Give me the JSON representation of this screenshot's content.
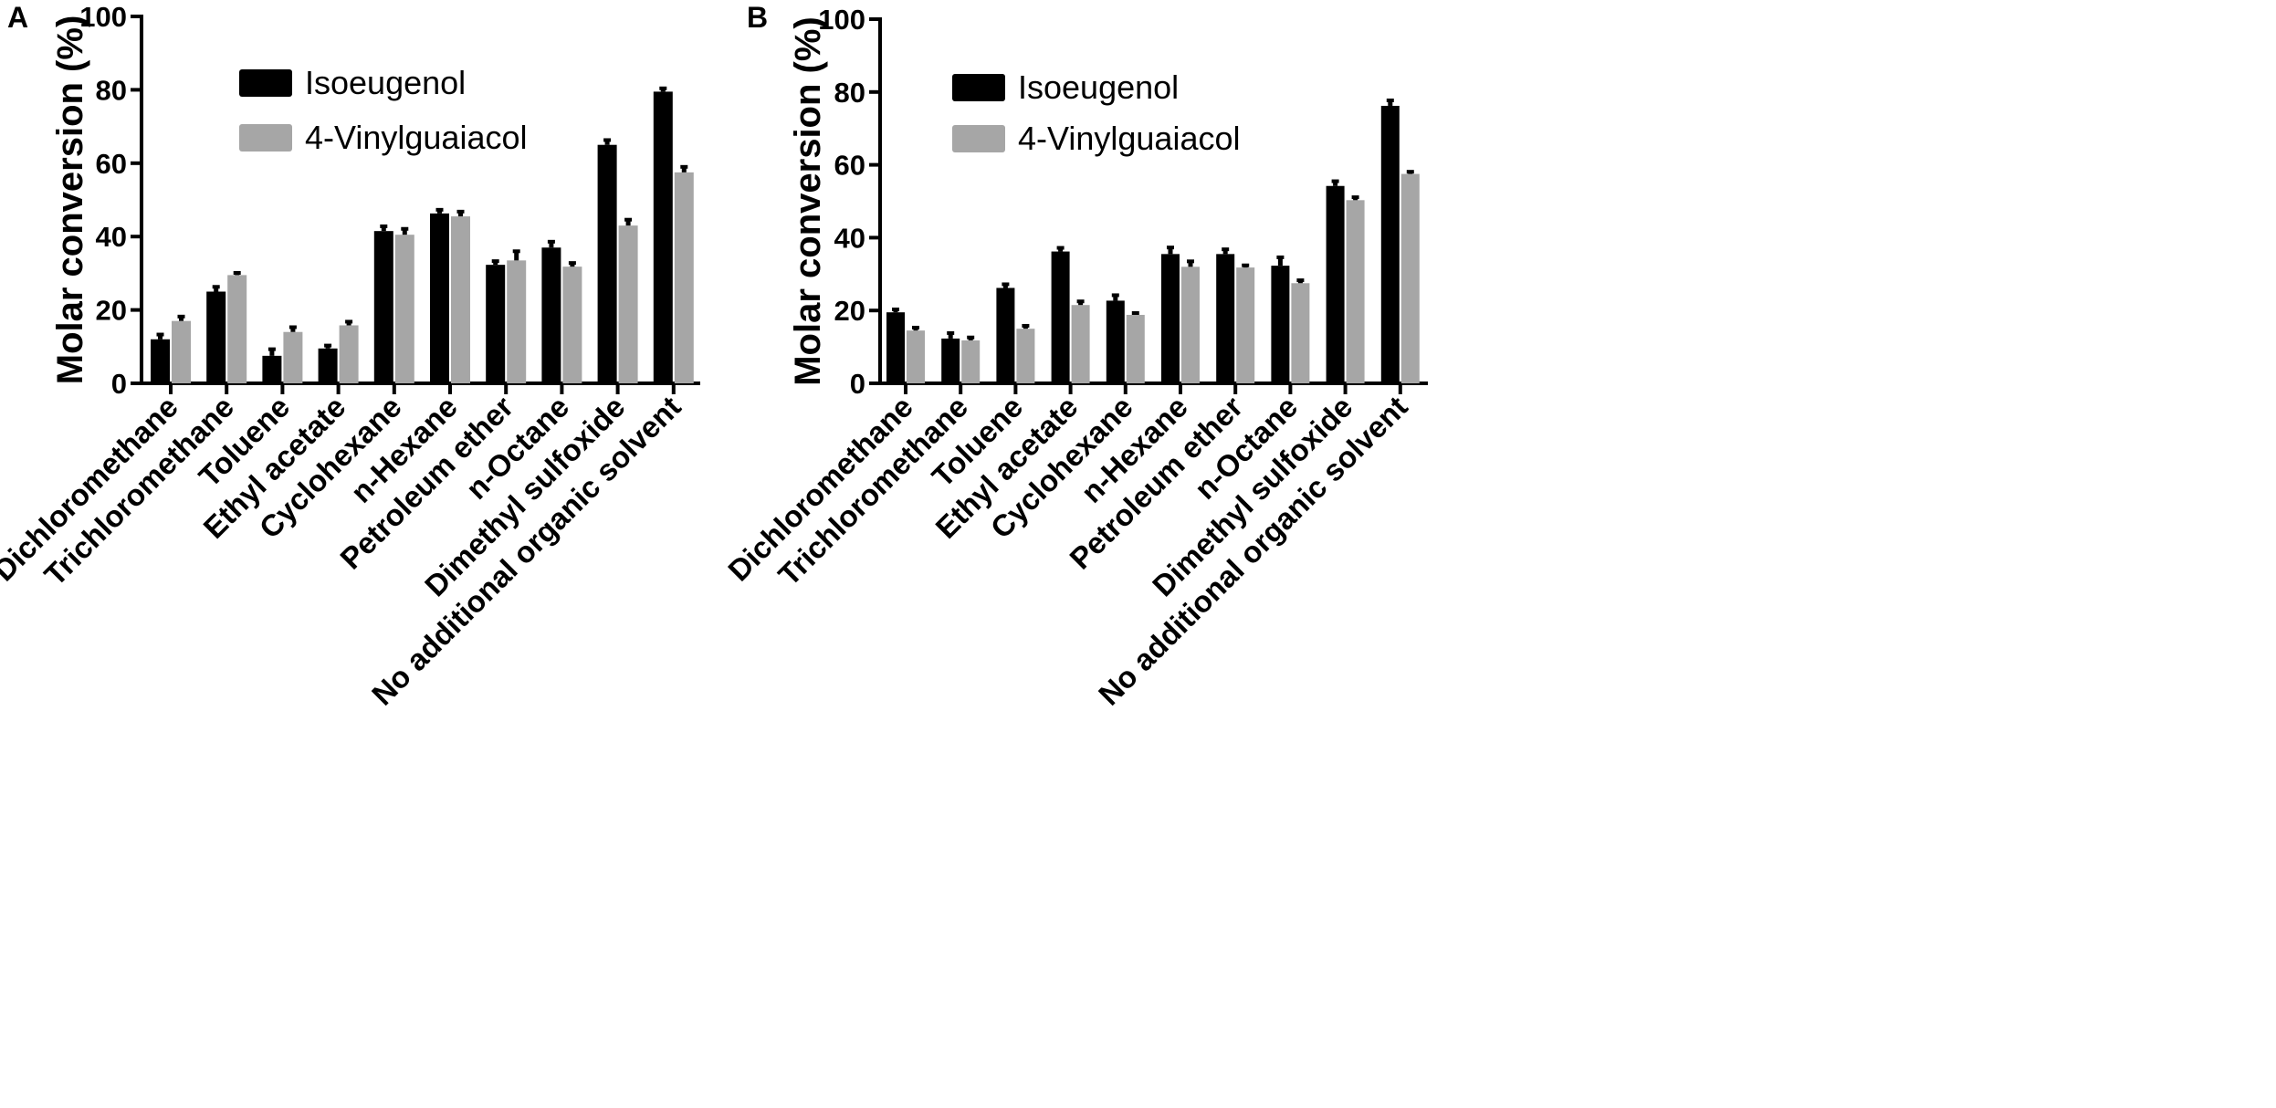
{
  "chart_data": [
    {
      "panel_label": "A",
      "type": "bar",
      "title": "",
      "xlabel": "",
      "ylabel": "Molar conversion (%)",
      "ylim": [
        0,
        100
      ],
      "yticks": [
        "0",
        "20",
        "40",
        "60",
        "80",
        "100"
      ],
      "categories": [
        "Dichloromethane",
        "Trichloromethane",
        "Toluene",
        "Ethyl acetate",
        "Cyclohexane",
        "n-Hexane",
        "Petroleum ether",
        "n-Octane",
        "Dimethyl sulfoxide",
        "No additional organic solvent"
      ],
      "series": [
        {
          "name": "Isoeugenol",
          "color": "#000000",
          "values": [
            12,
            25,
            7.5,
            9.5,
            41.5,
            46.3,
            32.3,
            37,
            65,
            79.5
          ],
          "errors": [
            1.3,
            1.3,
            1.8,
            0.8,
            1.3,
            1.0,
            1.0,
            1.6,
            1.3,
            0.9
          ]
        },
        {
          "name": "4-Vinylguaiacol",
          "color": "#a6a6a6",
          "values": [
            17,
            29.5,
            14,
            15.8,
            40.5,
            45.5,
            33.5,
            31.8,
            43,
            57.5
          ],
          "errors": [
            1.2,
            0.6,
            1.3,
            1.0,
            1.6,
            1.3,
            2.5,
            1.0,
            1.6,
            1.5
          ]
        }
      ],
      "legend_position": "top-center"
    },
    {
      "panel_label": "B",
      "type": "bar",
      "title": "",
      "xlabel": "",
      "ylabel": "Molar conversion (%)",
      "ylim": [
        0,
        100
      ],
      "yticks": [
        "0",
        "20",
        "40",
        "60",
        "80",
        "100"
      ],
      "categories": [
        "Dichloromethane",
        "Trichloromethane",
        "Toluene",
        "Ethyl acetate",
        "Cyclohexane",
        "n-Hexane",
        "Petroleum ether",
        "n-Octane",
        "Dimethyl sulfoxide",
        "No additional organic solvent"
      ],
      "series": [
        {
          "name": "Isoeugenol",
          "color": "#000000",
          "values": [
            19.5,
            12.3,
            26.2,
            36.2,
            22.7,
            35.5,
            35.5,
            32.3,
            54.2,
            76.2
          ],
          "errors": [
            0.8,
            1.5,
            1.0,
            1.0,
            1.5,
            1.8,
            1.3,
            2.3,
            1.3,
            1.5
          ]
        },
        {
          "name": "4-Vinylguaiacol",
          "color": "#a6a6a6",
          "values": [
            14.5,
            11.8,
            15,
            21.5,
            18.8,
            32,
            31.8,
            27.5,
            50.3,
            57.5
          ],
          "errors": [
            0.8,
            0.8,
            0.8,
            1.0,
            0.5,
            1.5,
            0.6,
            0.8,
            0.8,
            0.6
          ]
        }
      ],
      "legend_position": "top-center"
    }
  ]
}
